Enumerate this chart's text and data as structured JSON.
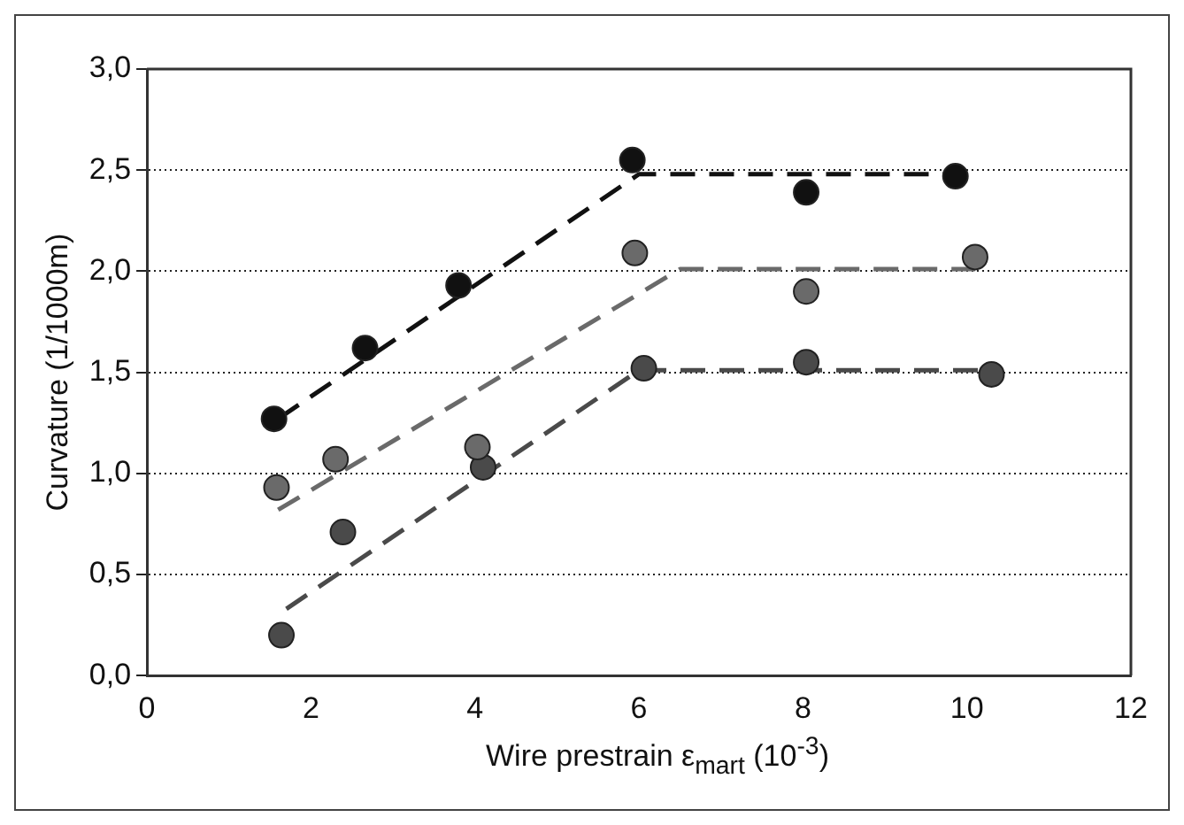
{
  "chart_data": {
    "type": "scatter",
    "xlabel": "Wire prestrain ε$_{mart}$  (10$^{-3}$)",
    "ylabel": "Curvature (1/1000m)",
    "xlim": [
      0,
      12
    ],
    "xticks": [
      0,
      2,
      4,
      6,
      8,
      10,
      12
    ],
    "ylim": [
      0,
      3
    ],
    "yticks": [
      {
        "value": 0,
        "label": "0,0"
      },
      {
        "value": 0.5,
        "label": "0,5"
      },
      {
        "value": 1,
        "label": "1,0"
      },
      {
        "value": 1.5,
        "label": "1,5"
      },
      {
        "value": 2,
        "label": "2,0"
      },
      {
        "value": 2.5,
        "label": "2,5"
      },
      {
        "value": 3,
        "label": "3,0"
      }
    ],
    "grid": "y",
    "legend": false,
    "marker": "circle",
    "series": [
      {
        "type": "scatter",
        "color": "#111111",
        "x": [
          1.55,
          2.66,
          3.8,
          5.92,
          8.04,
          9.86
        ],
        "values": [
          1.27,
          1.62,
          1.93,
          2.55,
          2.39,
          2.47
        ]
      },
      {
        "type": "scatter",
        "color": "#6a6a6a",
        "x": [
          1.58,
          2.3,
          4.03,
          5.95,
          8.04,
          10.1
        ],
        "values": [
          0.93,
          1.07,
          1.13,
          2.09,
          1.9,
          2.07
        ]
      },
      {
        "type": "scatter",
        "color": "#4a4a4a",
        "x": [
          1.64,
          2.39,
          4.1,
          6.06,
          8.04,
          10.3
        ],
        "values": [
          0.2,
          0.71,
          1.03,
          1.52,
          1.55,
          1.49
        ]
      },
      {
        "type": "line",
        "color": "#111111",
        "line_style": "dashed",
        "marker": "none",
        "x": [
          1.6,
          6,
          10
        ],
        "values": [
          1.27,
          2.48,
          2.48
        ]
      },
      {
        "type": "line",
        "color": "#6a6a6a",
        "line_style": "dashed",
        "marker": "none",
        "x": [
          1.6,
          6.5,
          10.1
        ],
        "values": [
          0.82,
          2.01,
          2.01
        ]
      },
      {
        "type": "line",
        "color": "#4a4a4a",
        "line_style": "dashed",
        "marker": "none",
        "x": [
          1.7,
          6,
          10.4
        ],
        "values": [
          0.33,
          1.51,
          1.51
        ]
      }
    ]
  }
}
